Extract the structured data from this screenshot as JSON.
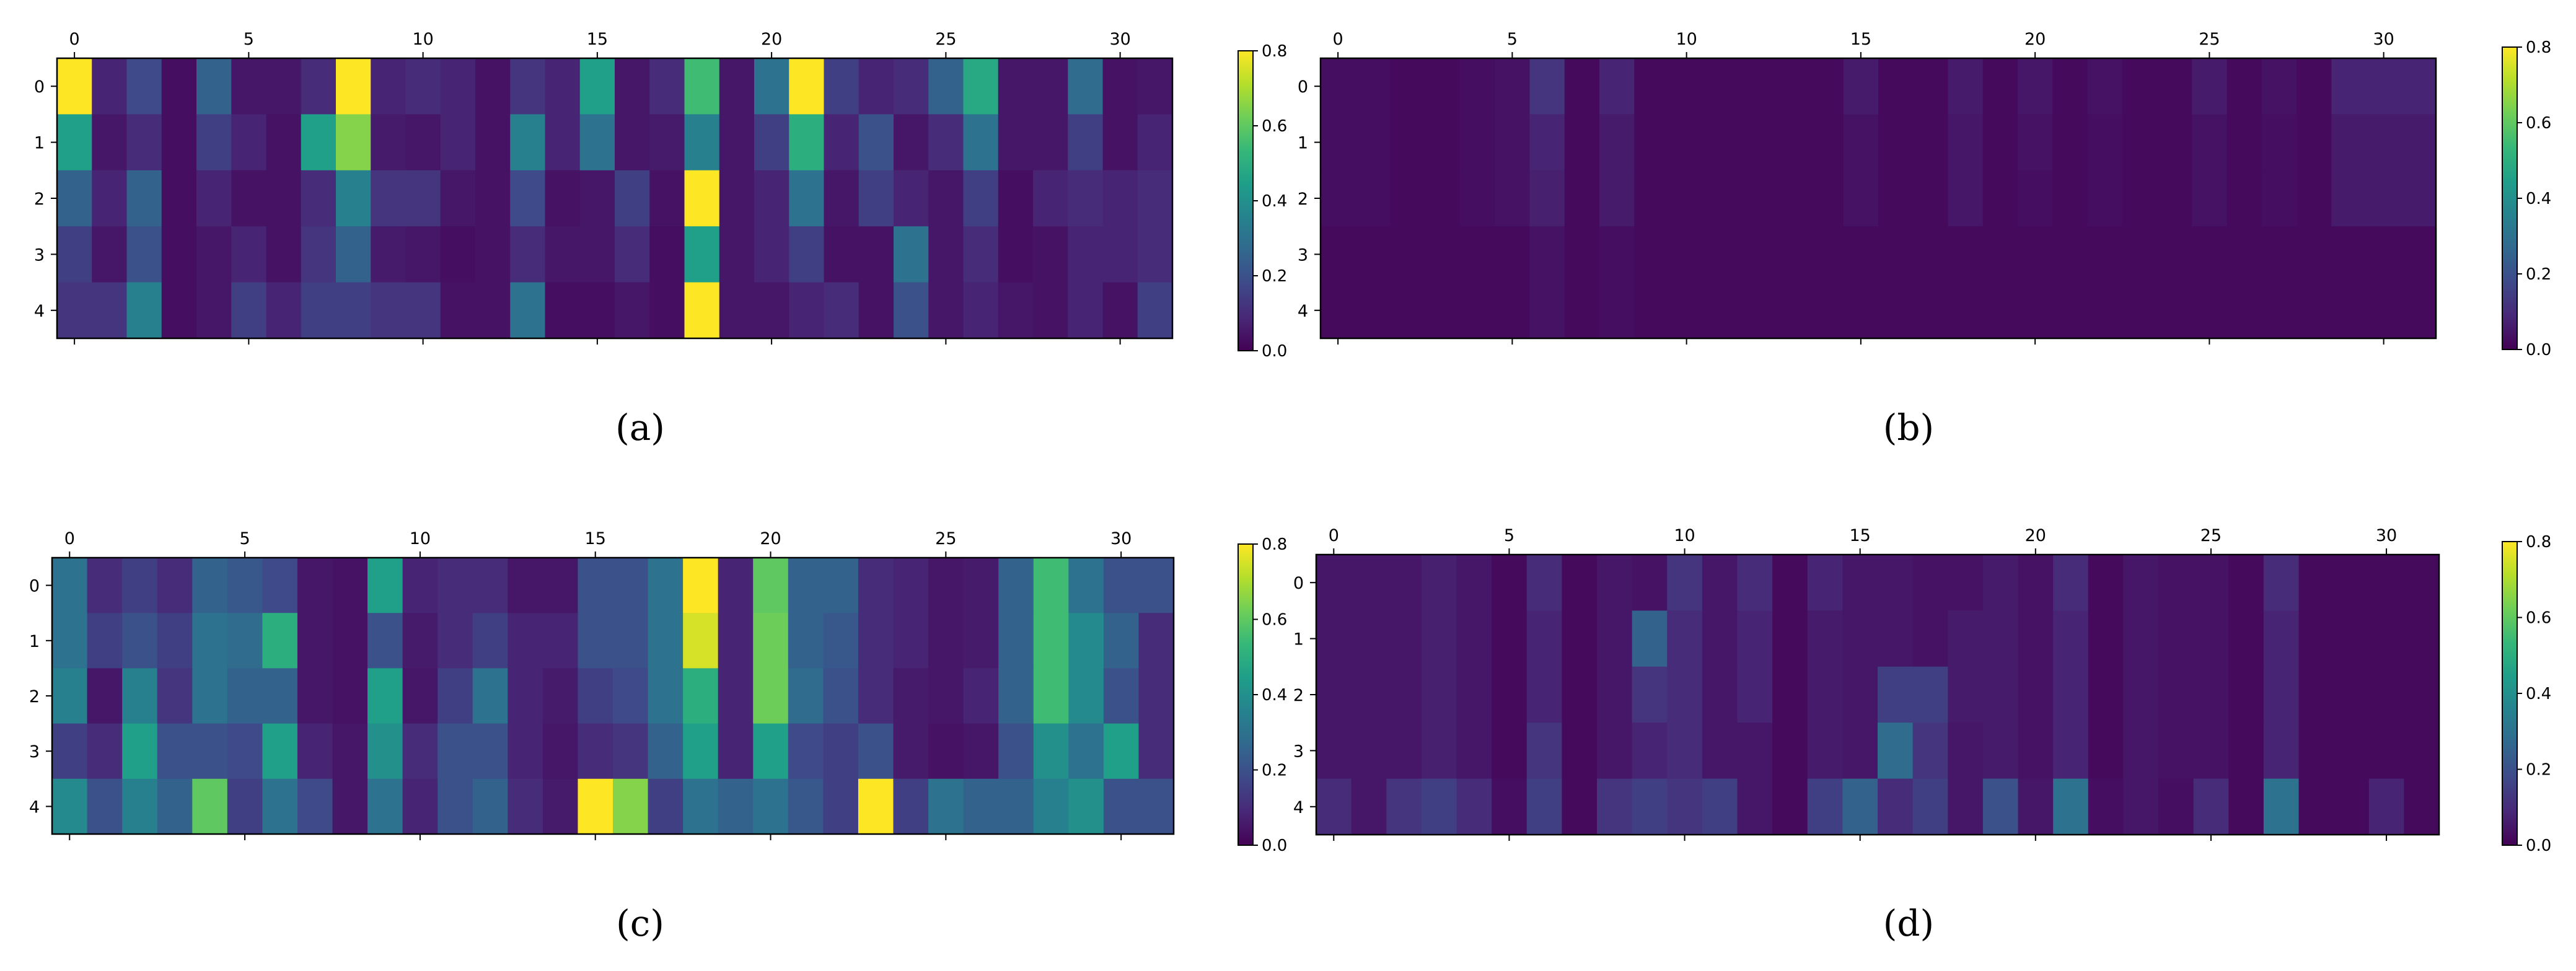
{
  "colorscale": {
    "name": "viridis",
    "stops": [
      "#440154",
      "#482878",
      "#3e4989",
      "#31688e",
      "#26828e",
      "#1f9e89",
      "#35b779",
      "#6ece58",
      "#b5de2b",
      "#fde725"
    ],
    "vmin": 0,
    "vmax": 0.8
  },
  "chart_data": [
    {
      "type": "heatmap",
      "caption": "(a)",
      "rows": [
        0,
        1,
        2,
        3,
        4
      ],
      "cols": 32,
      "xticks": [
        0,
        5,
        10,
        15,
        20,
        25,
        30
      ],
      "yticks": [
        0,
        1,
        2,
        3,
        4
      ],
      "colorbar": {
        "ticks": [
          0.0,
          0.2,
          0.4,
          0.6,
          0.8
        ],
        "labels": [
          "0.0",
          "0.2",
          "0.4",
          "0.6",
          "0.8"
        ]
      },
      "values": [
        [
          0.8,
          0.08,
          0.18,
          0.03,
          0.25,
          0.05,
          0.05,
          0.1,
          0.8,
          0.08,
          0.1,
          0.08,
          0.04,
          0.12,
          0.08,
          0.45,
          0.05,
          0.1,
          0.55,
          0.05,
          0.3,
          0.8,
          0.15,
          0.08,
          0.1,
          0.25,
          0.48,
          0.05,
          0.05,
          0.28,
          0.04,
          0.05
        ],
        [
          0.45,
          0.05,
          0.1,
          0.03,
          0.15,
          0.08,
          0.04,
          0.45,
          0.65,
          0.06,
          0.05,
          0.08,
          0.04,
          0.35,
          0.08,
          0.3,
          0.05,
          0.06,
          0.35,
          0.05,
          0.15,
          0.5,
          0.08,
          0.2,
          0.05,
          0.1,
          0.3,
          0.05,
          0.05,
          0.15,
          0.04,
          0.08
        ],
        [
          0.25,
          0.08,
          0.25,
          0.03,
          0.08,
          0.04,
          0.04,
          0.1,
          0.35,
          0.12,
          0.12,
          0.05,
          0.04,
          0.18,
          0.04,
          0.05,
          0.15,
          0.04,
          0.8,
          0.05,
          0.08,
          0.3,
          0.05,
          0.15,
          0.08,
          0.05,
          0.15,
          0.03,
          0.08,
          0.1,
          0.08,
          0.1
        ],
        [
          0.15,
          0.05,
          0.2,
          0.03,
          0.05,
          0.08,
          0.04,
          0.12,
          0.25,
          0.06,
          0.05,
          0.03,
          0.04,
          0.1,
          0.05,
          0.05,
          0.1,
          0.03,
          0.45,
          0.05,
          0.08,
          0.15,
          0.04,
          0.04,
          0.3,
          0.05,
          0.1,
          0.03,
          0.04,
          0.08,
          0.08,
          0.1
        ],
        [
          0.12,
          0.12,
          0.35,
          0.03,
          0.05,
          0.15,
          0.08,
          0.15,
          0.15,
          0.12,
          0.12,
          0.04,
          0.04,
          0.3,
          0.03,
          0.03,
          0.05,
          0.03,
          0.8,
          0.05,
          0.05,
          0.08,
          0.1,
          0.04,
          0.2,
          0.05,
          0.08,
          0.05,
          0.04,
          0.08,
          0.04,
          0.15
        ]
      ]
    },
    {
      "type": "heatmap",
      "caption": "(b)",
      "rows": [
        0,
        1,
        2,
        3,
        4
      ],
      "cols": 32,
      "xticks": [
        0,
        5,
        10,
        15,
        20,
        25,
        30
      ],
      "yticks": [
        0,
        1,
        2,
        3,
        4
      ],
      "colorbar": {
        "ticks": [
          0.0,
          0.2,
          0.4,
          0.6,
          0.8
        ],
        "labels": [
          "0.0",
          "0.2",
          "0.4",
          "0.6",
          "0.8"
        ]
      },
      "values": [
        [
          0.03,
          0.03,
          0.02,
          0.02,
          0.03,
          0.04,
          0.12,
          0.02,
          0.08,
          0.02,
          0.02,
          0.02,
          0.02,
          0.02,
          0.02,
          0.06,
          0.02,
          0.02,
          0.06,
          0.02,
          0.05,
          0.02,
          0.04,
          0.02,
          0.02,
          0.06,
          0.02,
          0.04,
          0.02,
          0.08,
          0.08,
          0.08
        ],
        [
          0.03,
          0.03,
          0.02,
          0.02,
          0.03,
          0.04,
          0.08,
          0.02,
          0.06,
          0.02,
          0.02,
          0.02,
          0.02,
          0.02,
          0.02,
          0.04,
          0.02,
          0.02,
          0.05,
          0.02,
          0.04,
          0.02,
          0.03,
          0.02,
          0.02,
          0.04,
          0.02,
          0.03,
          0.02,
          0.06,
          0.06,
          0.06
        ],
        [
          0.03,
          0.03,
          0.02,
          0.02,
          0.03,
          0.04,
          0.07,
          0.02,
          0.06,
          0.02,
          0.02,
          0.02,
          0.02,
          0.02,
          0.02,
          0.04,
          0.02,
          0.02,
          0.05,
          0.02,
          0.03,
          0.02,
          0.03,
          0.02,
          0.02,
          0.04,
          0.02,
          0.03,
          0.02,
          0.06,
          0.06,
          0.06
        ],
        [
          0.02,
          0.02,
          0.02,
          0.02,
          0.02,
          0.02,
          0.04,
          0.02,
          0.03,
          0.02,
          0.02,
          0.02,
          0.02,
          0.02,
          0.02,
          0.02,
          0.02,
          0.02,
          0.02,
          0.02,
          0.02,
          0.02,
          0.02,
          0.02,
          0.02,
          0.02,
          0.02,
          0.02,
          0.02,
          0.02,
          0.02,
          0.02
        ],
        [
          0.02,
          0.02,
          0.02,
          0.02,
          0.02,
          0.02,
          0.04,
          0.02,
          0.03,
          0.02,
          0.02,
          0.02,
          0.02,
          0.02,
          0.02,
          0.02,
          0.02,
          0.02,
          0.02,
          0.02,
          0.02,
          0.02,
          0.02,
          0.02,
          0.02,
          0.02,
          0.02,
          0.02,
          0.02,
          0.02,
          0.02,
          0.02
        ]
      ]
    },
    {
      "type": "heatmap",
      "caption": "(c)",
      "rows": [
        0,
        1,
        2,
        3,
        4
      ],
      "cols": 32,
      "xticks": [
        0,
        5,
        10,
        15,
        20,
        25,
        30
      ],
      "yticks": [
        0,
        1,
        2,
        3,
        4
      ],
      "colorbar": {
        "ticks": [
          0.0,
          0.2,
          0.4,
          0.6,
          0.8
        ],
        "labels": [
          "0.0",
          "0.2",
          "0.4",
          "0.6",
          "0.8"
        ]
      },
      "values": [
        [
          0.3,
          0.1,
          0.15,
          0.1,
          0.25,
          0.22,
          0.18,
          0.05,
          0.04,
          0.45,
          0.08,
          0.1,
          0.1,
          0.05,
          0.05,
          0.2,
          0.2,
          0.3,
          0.8,
          0.08,
          0.6,
          0.25,
          0.25,
          0.1,
          0.08,
          0.05,
          0.06,
          0.25,
          0.55,
          0.3,
          0.2,
          0.2
        ],
        [
          0.3,
          0.15,
          0.2,
          0.15,
          0.3,
          0.28,
          0.5,
          0.05,
          0.04,
          0.2,
          0.06,
          0.1,
          0.15,
          0.08,
          0.08,
          0.2,
          0.2,
          0.3,
          0.75,
          0.08,
          0.62,
          0.25,
          0.22,
          0.1,
          0.08,
          0.05,
          0.06,
          0.25,
          0.55,
          0.38,
          0.25,
          0.1
        ],
        [
          0.35,
          0.05,
          0.35,
          0.12,
          0.3,
          0.25,
          0.25,
          0.05,
          0.04,
          0.45,
          0.05,
          0.15,
          0.3,
          0.08,
          0.06,
          0.15,
          0.18,
          0.3,
          0.5,
          0.08,
          0.62,
          0.28,
          0.2,
          0.1,
          0.06,
          0.05,
          0.08,
          0.25,
          0.55,
          0.38,
          0.2,
          0.1
        ],
        [
          0.15,
          0.1,
          0.45,
          0.2,
          0.2,
          0.18,
          0.45,
          0.08,
          0.05,
          0.4,
          0.1,
          0.2,
          0.2,
          0.08,
          0.05,
          0.1,
          0.12,
          0.25,
          0.45,
          0.08,
          0.45,
          0.18,
          0.15,
          0.2,
          0.06,
          0.04,
          0.05,
          0.2,
          0.4,
          0.3,
          0.45,
          0.1
        ],
        [
          0.38,
          0.2,
          0.35,
          0.25,
          0.6,
          0.15,
          0.3,
          0.18,
          0.05,
          0.3,
          0.08,
          0.2,
          0.25,
          0.1,
          0.06,
          0.8,
          0.65,
          0.15,
          0.3,
          0.25,
          0.3,
          0.22,
          0.15,
          0.8,
          0.15,
          0.3,
          0.25,
          0.25,
          0.35,
          0.4,
          0.2,
          0.2
        ]
      ]
    },
    {
      "type": "heatmap",
      "caption": "(d)",
      "rows": [
        0,
        1,
        2,
        3,
        4
      ],
      "cols": 32,
      "xticks": [
        0,
        5,
        10,
        15,
        20,
        25,
        30
      ],
      "yticks": [
        0,
        1,
        2,
        3,
        4
      ],
      "colorbar": {
        "ticks": [
          0.0,
          0.2,
          0.4,
          0.6,
          0.8
        ],
        "labels": [
          "0.0",
          "0.2",
          "0.4",
          "0.6",
          "0.8"
        ]
      },
      "values": [
        [
          0.05,
          0.05,
          0.05,
          0.07,
          0.05,
          0.02,
          0.1,
          0.02,
          0.05,
          0.04,
          0.12,
          0.05,
          0.1,
          0.02,
          0.08,
          0.05,
          0.05,
          0.04,
          0.04,
          0.06,
          0.04,
          0.1,
          0.02,
          0.05,
          0.04,
          0.04,
          0.02,
          0.1,
          0.02,
          0.02,
          0.02,
          0.02
        ],
        [
          0.05,
          0.05,
          0.05,
          0.07,
          0.05,
          0.02,
          0.08,
          0.02,
          0.05,
          0.25,
          0.1,
          0.05,
          0.08,
          0.02,
          0.06,
          0.05,
          0.05,
          0.04,
          0.06,
          0.06,
          0.04,
          0.08,
          0.02,
          0.05,
          0.04,
          0.04,
          0.02,
          0.08,
          0.02,
          0.02,
          0.02,
          0.02
        ],
        [
          0.05,
          0.05,
          0.05,
          0.07,
          0.05,
          0.02,
          0.08,
          0.02,
          0.05,
          0.12,
          0.1,
          0.05,
          0.08,
          0.02,
          0.06,
          0.05,
          0.15,
          0.15,
          0.06,
          0.06,
          0.04,
          0.08,
          0.02,
          0.05,
          0.04,
          0.04,
          0.02,
          0.08,
          0.02,
          0.02,
          0.02,
          0.02
        ],
        [
          0.05,
          0.05,
          0.05,
          0.07,
          0.05,
          0.02,
          0.12,
          0.02,
          0.05,
          0.08,
          0.1,
          0.05,
          0.05,
          0.02,
          0.06,
          0.05,
          0.28,
          0.12,
          0.05,
          0.06,
          0.04,
          0.08,
          0.02,
          0.05,
          0.04,
          0.04,
          0.02,
          0.08,
          0.02,
          0.02,
          0.02,
          0.02
        ],
        [
          0.1,
          0.05,
          0.12,
          0.15,
          0.1,
          0.03,
          0.15,
          0.02,
          0.12,
          0.15,
          0.12,
          0.15,
          0.05,
          0.02,
          0.15,
          0.25,
          0.1,
          0.15,
          0.05,
          0.2,
          0.05,
          0.3,
          0.03,
          0.05,
          0.03,
          0.1,
          0.02,
          0.3,
          0.02,
          0.02,
          0.08,
          0.02
        ]
      ]
    }
  ]
}
